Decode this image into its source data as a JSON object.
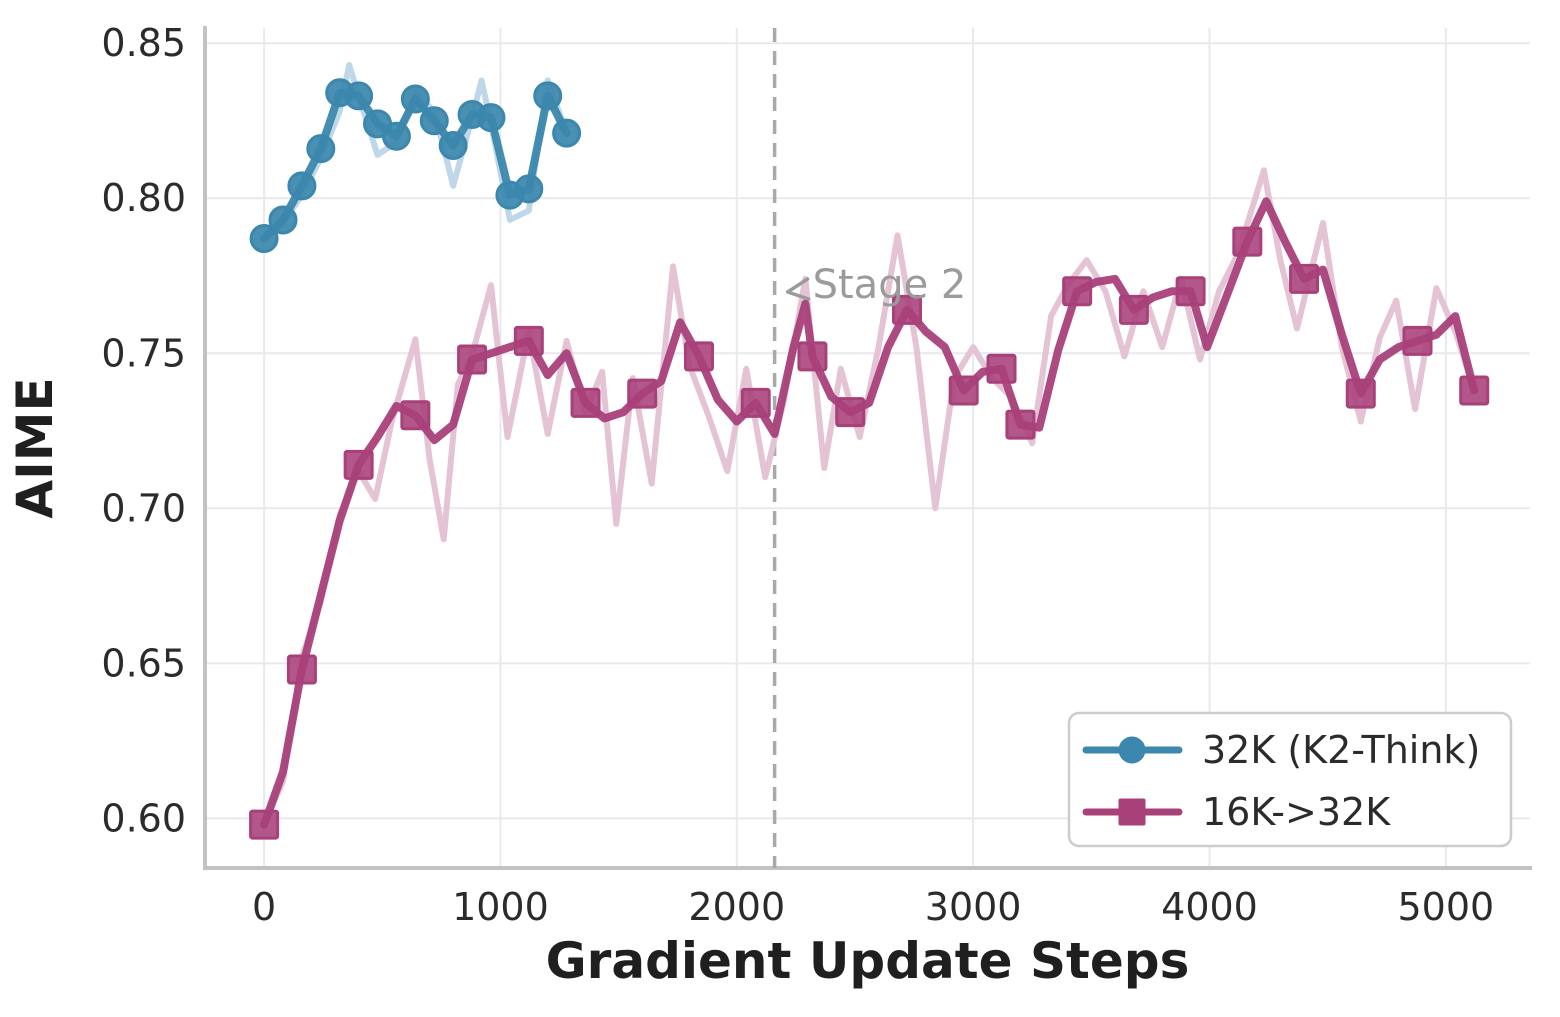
{
  "figure_title": "",
  "chart_data": {
    "type": "line",
    "title": "",
    "xlabel": "Gradient Update Steps",
    "ylabel": "AIME",
    "xlim": [
      -250,
      5356
    ],
    "ylim": [
      0.584,
      0.8549
    ],
    "grid": true,
    "x_ticks": [
      0,
      1000,
      2000,
      3000,
      4000,
      5000
    ],
    "x_tick_labels": [
      "0",
      "1000",
      "2000",
      "3000",
      "4000",
      "5000"
    ],
    "y_ticks": [
      0.6,
      0.65,
      0.7,
      0.75,
      0.8,
      0.85
    ],
    "y_tick_labels": [
      "0.60",
      "0.65",
      "0.70",
      "0.75",
      "0.80",
      "0.85"
    ],
    "legend_position": "lower right",
    "stage_boundary": {
      "x": 2160,
      "style": "dashed",
      "color": "#a9a9a9",
      "annotation_text": "Stage 2",
      "annotation_color": "#9b9b9b"
    },
    "series": [
      {
        "name": "32K (K2-Think)",
        "color": "#3b87ad",
        "raw_color": "#bfd8e9",
        "marker": "circle",
        "marker_mode": "every",
        "smoothed": [
          [
            0,
            0.787
          ],
          [
            80,
            0.793
          ],
          [
            160,
            0.804
          ],
          [
            240,
            0.816
          ],
          [
            320,
            0.834
          ],
          [
            400,
            0.833
          ],
          [
            480,
            0.824
          ],
          [
            560,
            0.82
          ],
          [
            640,
            0.832
          ],
          [
            720,
            0.825
          ],
          [
            800,
            0.817
          ],
          [
            880,
            0.827
          ],
          [
            960,
            0.826
          ],
          [
            1040,
            0.801
          ],
          [
            1120,
            0.803
          ],
          [
            1200,
            0.833
          ],
          [
            1280,
            0.821
          ]
        ],
        "raw": [
          [
            0,
            0.787
          ],
          [
            80,
            0.792
          ],
          [
            160,
            0.801
          ],
          [
            240,
            0.813
          ],
          [
            320,
            0.828
          ],
          [
            360,
            0.843
          ],
          [
            400,
            0.833
          ],
          [
            480,
            0.814
          ],
          [
            560,
            0.818
          ],
          [
            640,
            0.834
          ],
          [
            720,
            0.828
          ],
          [
            800,
            0.804
          ],
          [
            880,
            0.826
          ],
          [
            920,
            0.838
          ],
          [
            960,
            0.824
          ],
          [
            1040,
            0.793
          ],
          [
            1120,
            0.796
          ],
          [
            1200,
            0.838
          ],
          [
            1280,
            0.821
          ]
        ]
      },
      {
        "name": "16K->32K",
        "color": "#a8407a",
        "raw_color": "#e4c3d5",
        "marker": "square",
        "marker_mode": "listed",
        "marker_steps": [
          0,
          160,
          400,
          640,
          880,
          1120,
          1360,
          1600,
          1840,
          2080,
          2320,
          2480,
          2720,
          2960,
          3120,
          3200,
          3440,
          3680,
          3920,
          4160,
          4400,
          4640,
          4880,
          5120
        ],
        "smoothed": [
          [
            0,
            0.598
          ],
          [
            80,
            0.615
          ],
          [
            160,
            0.648
          ],
          [
            240,
            0.672
          ],
          [
            320,
            0.696
          ],
          [
            400,
            0.714
          ],
          [
            480,
            0.723
          ],
          [
            560,
            0.733
          ],
          [
            640,
            0.73
          ],
          [
            720,
            0.722
          ],
          [
            800,
            0.727
          ],
          [
            880,
            0.748
          ],
          [
            960,
            0.75
          ],
          [
            1040,
            0.752
          ],
          [
            1120,
            0.754
          ],
          [
            1200,
            0.743
          ],
          [
            1280,
            0.75
          ],
          [
            1360,
            0.734
          ],
          [
            1440,
            0.729
          ],
          [
            1520,
            0.731
          ],
          [
            1600,
            0.737
          ],
          [
            1680,
            0.741
          ],
          [
            1760,
            0.76
          ],
          [
            1840,
            0.749
          ],
          [
            1920,
            0.735
          ],
          [
            2000,
            0.728
          ],
          [
            2080,
            0.734
          ],
          [
            2160,
            0.724
          ],
          [
            2240,
            0.752
          ],
          [
            2290,
            0.766
          ],
          [
            2320,
            0.749
          ],
          [
            2400,
            0.736
          ],
          [
            2480,
            0.731
          ],
          [
            2560,
            0.734
          ],
          [
            2640,
            0.752
          ],
          [
            2720,
            0.764
          ],
          [
            2800,
            0.757
          ],
          [
            2880,
            0.752
          ],
          [
            2960,
            0.738
          ],
          [
            3040,
            0.744
          ],
          [
            3120,
            0.745
          ],
          [
            3200,
            0.727
          ],
          [
            3280,
            0.726
          ],
          [
            3360,
            0.751
          ],
          [
            3440,
            0.77
          ],
          [
            3520,
            0.773
          ],
          [
            3600,
            0.774
          ],
          [
            3680,
            0.764
          ],
          [
            3760,
            0.768
          ],
          [
            3840,
            0.77
          ],
          [
            3920,
            0.77
          ],
          [
            3990,
            0.752
          ],
          [
            4080,
            0.77
          ],
          [
            4160,
            0.786
          ],
          [
            4240,
            0.799
          ],
          [
            4320,
            0.786
          ],
          [
            4400,
            0.774
          ],
          [
            4480,
            0.777
          ],
          [
            4560,
            0.756
          ],
          [
            4640,
            0.737
          ],
          [
            4720,
            0.748
          ],
          [
            4800,
            0.752
          ],
          [
            4880,
            0.754
          ],
          [
            4960,
            0.756
          ],
          [
            5040,
            0.762
          ],
          [
            5120,
            0.738
          ]
        ],
        "raw": [
          [
            0,
            0.598
          ],
          [
            80,
            0.612
          ],
          [
            160,
            0.652
          ],
          [
            240,
            0.67
          ],
          [
            320,
            0.698
          ],
          [
            400,
            0.712
          ],
          [
            470,
            0.703
          ],
          [
            540,
            0.728
          ],
          [
            640,
            0.7545
          ],
          [
            700,
            0.716
          ],
          [
            760,
            0.69
          ],
          [
            820,
            0.74
          ],
          [
            880,
            0.7495
          ],
          [
            960,
            0.772
          ],
          [
            1030,
            0.723
          ],
          [
            1120,
            0.757
          ],
          [
            1200,
            0.724
          ],
          [
            1280,
            0.754
          ],
          [
            1360,
            0.731
          ],
          [
            1430,
            0.744
          ],
          [
            1490,
            0.695
          ],
          [
            1560,
            0.742
          ],
          [
            1640,
            0.708
          ],
          [
            1730,
            0.778
          ],
          [
            1800,
            0.746
          ],
          [
            1880,
            0.73
          ],
          [
            1960,
            0.712
          ],
          [
            2040,
            0.745
          ],
          [
            2120,
            0.71
          ],
          [
            2200,
            0.735
          ],
          [
            2290,
            0.774
          ],
          [
            2370,
            0.713
          ],
          [
            2440,
            0.745
          ],
          [
            2520,
            0.723
          ],
          [
            2600,
            0.752
          ],
          [
            2680,
            0.788
          ],
          [
            2760,
            0.752
          ],
          [
            2840,
            0.7
          ],
          [
            2920,
            0.742
          ],
          [
            3000,
            0.752
          ],
          [
            3080,
            0.742
          ],
          [
            3160,
            0.736
          ],
          [
            3250,
            0.721
          ],
          [
            3330,
            0.762
          ],
          [
            3400,
            0.772
          ],
          [
            3480,
            0.78
          ],
          [
            3560,
            0.77
          ],
          [
            3640,
            0.749
          ],
          [
            3720,
            0.77
          ],
          [
            3800,
            0.752
          ],
          [
            3880,
            0.774
          ],
          [
            3960,
            0.748
          ],
          [
            4040,
            0.77
          ],
          [
            4120,
            0.782
          ],
          [
            4230,
            0.809
          ],
          [
            4300,
            0.78
          ],
          [
            4370,
            0.758
          ],
          [
            4480,
            0.792
          ],
          [
            4560,
            0.752
          ],
          [
            4640,
            0.728
          ],
          [
            4720,
            0.755
          ],
          [
            4790,
            0.767
          ],
          [
            4870,
            0.732
          ],
          [
            4960,
            0.771
          ],
          [
            5040,
            0.757
          ],
          [
            5120,
            0.738
          ]
        ]
      }
    ]
  },
  "legend": {
    "items": [
      {
        "label": "32K (K2-Think)",
        "marker": "circle",
        "color": "#3b87ad"
      },
      {
        "label": "16K->32K",
        "marker": "square",
        "color": "#a8407a"
      }
    ]
  },
  "style": {
    "grid_color": "#e9e9ed",
    "spine_color": "#c2c2c2",
    "tick_text_color": "#2b2b2b",
    "axis_label_color": "#1f1f1f",
    "legend_border_color": "#cccccc",
    "background": "#ffffff"
  }
}
